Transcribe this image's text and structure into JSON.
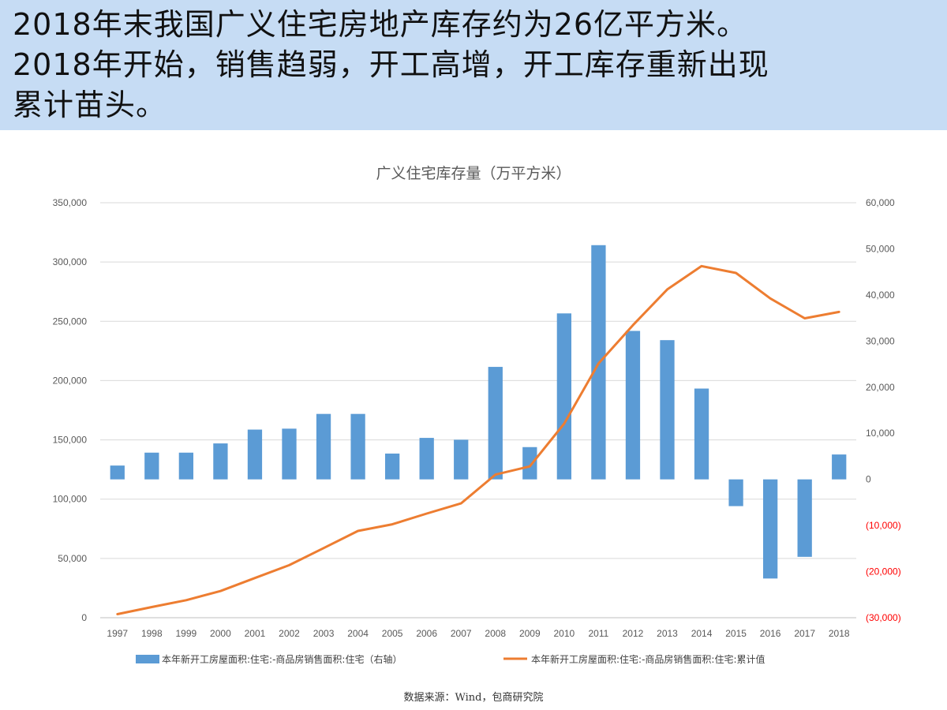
{
  "headline": {
    "lines": [
      "2018年末我国广义住宅房地产库存约为26亿平方米。",
      "2018年开始，销售趋弱，开工高增，开工库存重新出现",
      "累计苗头。"
    ]
  },
  "chart_data": {
    "type": "bar+line",
    "title": "广义住宅库存量（万平方米）",
    "categories": [
      "1997",
      "1998",
      "1999",
      "2000",
      "2001",
      "2002",
      "2003",
      "2004",
      "2005",
      "2006",
      "2007",
      "2008",
      "2009",
      "2010",
      "2011",
      "2012",
      "2013",
      "2014",
      "2015",
      "2016",
      "2017",
      "2018"
    ],
    "series": [
      {
        "name": "本年新开工房屋面积:住宅:-商品房销售面积:住宅（右轴）",
        "type": "bar",
        "axis": "right",
        "color": "#5b9bd5",
        "values": [
          3000,
          5800,
          5800,
          7800,
          10800,
          11000,
          14200,
          14200,
          5600,
          9000,
          8600,
          24400,
          7000,
          36000,
          50800,
          32200,
          30200,
          19700,
          -5800,
          -21500,
          -16800,
          5400
        ]
      },
      {
        "name": "本年新开工房屋面积:住宅:-商品房销售面积:住宅:累计值",
        "type": "line",
        "axis": "left",
        "color": "#ed7d31",
        "values": [
          3000,
          9000,
          14800,
          22500,
          33500,
          44300,
          58700,
          73200,
          78800,
          87800,
          96400,
          120700,
          127600,
          163700,
          214400,
          246700,
          276900,
          296600,
          290800,
          269300,
          252500,
          257900
        ]
      }
    ],
    "left_axis": {
      "min": 0,
      "max": 350000,
      "ticks": [
        "0",
        "50,000",
        "100,000",
        "150,000",
        "200,000",
        "250,000",
        "300,000",
        "350,000"
      ]
    },
    "right_axis": {
      "min": -30000,
      "max": 60000,
      "ticks": [
        "(30,000)",
        "(20,000)",
        "(10,000)",
        "0",
        "10,000",
        "20,000",
        "30,000",
        "40,000",
        "50,000",
        "60,000"
      ],
      "negative_color": "#ff0000"
    },
    "grid": true,
    "legend_placement": "bottom",
    "source": "数据来源：Wind，包商研究院"
  }
}
